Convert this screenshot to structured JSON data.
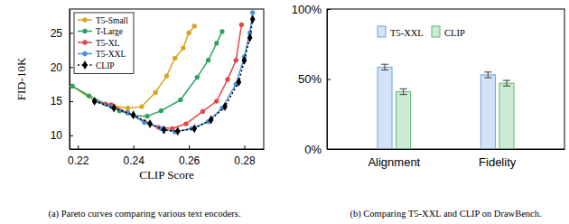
{
  "chart_data": [
    {
      "type": "line",
      "caption": "(a) Pareto curves comparing various text encoders.",
      "x_label": "CLIP Score",
      "y_label": "FID-10K",
      "xlim": [
        0.217,
        0.287
      ],
      "ylim": [
        8,
        28.5
      ],
      "xticks": [
        0.22,
        0.24,
        0.26,
        0.28
      ],
      "yticks": [
        10,
        15,
        20,
        25
      ],
      "grid": false,
      "legend": "upper left",
      "series": [
        {
          "name": "T5-Small",
          "color": "#d9a520",
          "marker": "circle",
          "line_style": "solid",
          "x": [
            0.218,
            0.226,
            0.233,
            0.238,
            0.243,
            0.248,
            0.252,
            0.255,
            0.258,
            0.26,
            0.262
          ],
          "values": [
            17.2,
            15.0,
            14.3,
            14.0,
            14.2,
            16.3,
            18.7,
            21.3,
            22.8,
            25.0,
            26.0
          ]
        },
        {
          "name": "T-Large",
          "color": "#2ca25f",
          "marker": "circle",
          "line_style": "solid",
          "x": [
            0.218,
            0.224,
            0.23,
            0.235,
            0.24,
            0.245,
            0.25,
            0.257,
            0.263,
            0.267,
            0.27,
            0.272
          ],
          "values": [
            17.2,
            15.8,
            14.6,
            13.6,
            12.9,
            12.8,
            13.6,
            15.2,
            18.5,
            21.0,
            23.5,
            25.2
          ]
        },
        {
          "name": "T5-XL",
          "color": "#e04848",
          "marker": "circle",
          "line_style": "solid",
          "x": [
            0.226,
            0.232,
            0.238,
            0.244,
            0.249,
            0.254,
            0.259,
            0.265,
            0.27,
            0.274,
            0.277,
            0.279
          ],
          "values": [
            15.0,
            14.5,
            13.3,
            12.0,
            11.2,
            11.0,
            11.7,
            13.5,
            15.0,
            18.2,
            21.0,
            26.2
          ]
        },
        {
          "name": "T5-XXL",
          "color": "#4a8fe0",
          "marker": "circle",
          "line_style": "solid",
          "x": [
            0.226,
            0.232,
            0.238,
            0.244,
            0.25,
            0.255,
            0.261,
            0.267,
            0.272,
            0.277,
            0.28,
            0.282,
            0.283
          ],
          "values": [
            15.0,
            14.2,
            13.3,
            11.9,
            11.0,
            10.5,
            11.0,
            12.0,
            14.0,
            17.5,
            21.5,
            25.0,
            28.0
          ]
        },
        {
          "name": "CLIP",
          "color": "#000000",
          "marker": "diamond",
          "line_style": "dotted",
          "x": [
            0.226,
            0.233,
            0.24,
            0.246,
            0.251,
            0.256,
            0.262,
            0.268,
            0.273,
            0.278,
            0.28,
            0.282,
            0.283
          ],
          "values": [
            15.0,
            14.0,
            13.0,
            11.7,
            10.8,
            10.6,
            11.0,
            12.3,
            14.2,
            17.8,
            21.0,
            24.3,
            27.0
          ]
        }
      ]
    },
    {
      "type": "bar",
      "caption": "(b) Comparing T5-XXL and CLIP on DrawBench.",
      "categories": [
        "Alignment",
        "Fidelity"
      ],
      "ylim": [
        0,
        100
      ],
      "yticks": [
        {
          "value": 0,
          "label": "0%"
        },
        {
          "value": 50,
          "label": "50%"
        },
        {
          "value": 100,
          "label": "100%"
        }
      ],
      "grid": false,
      "legend": "upper center",
      "series": [
        {
          "name": "T5-XXL",
          "color": "#6fa0e0",
          "values": [
            58.5,
            53.0
          ],
          "errors": [
            2.0,
            2.0
          ]
        },
        {
          "name": "CLIP",
          "color": "#5cb870",
          "values": [
            41.0,
            47.0
          ],
          "errors": [
            2.0,
            2.0
          ]
        }
      ]
    }
  ]
}
